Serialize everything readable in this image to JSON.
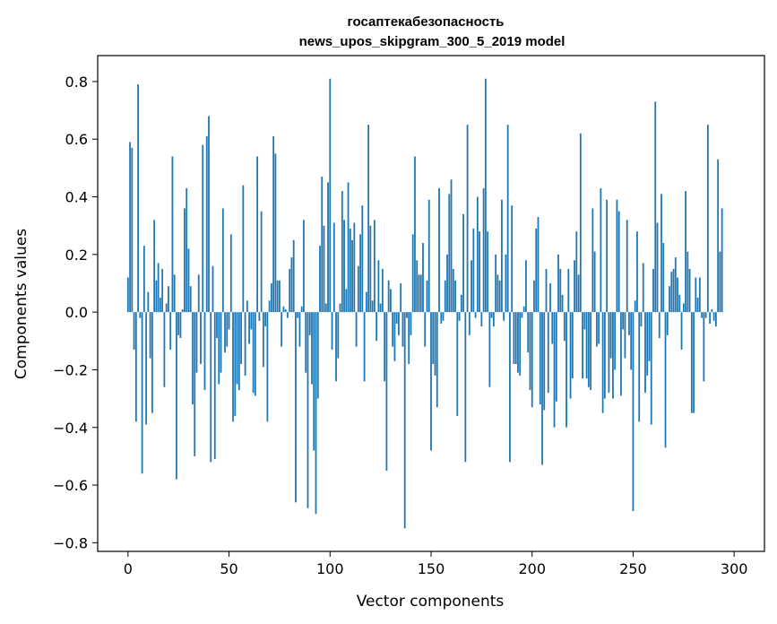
{
  "chart_data": {
    "type": "bar",
    "title": "госаптекабезопасность",
    "subtitle": "news_upos_skipgram_300_5_2019 model",
    "xlabel": "Vector components",
    "ylabel": "Components values",
    "xlim": [
      -15,
      315
    ],
    "ylim": [
      -0.83,
      0.89
    ],
    "xticks": [
      0,
      50,
      100,
      150,
      200,
      250,
      300
    ],
    "xtick_labels": [
      "0",
      "50",
      "100",
      "150",
      "200",
      "250",
      "300"
    ],
    "yticks": [
      -0.8,
      -0.6,
      -0.4,
      -0.2,
      0.0,
      0.2,
      0.4,
      0.6,
      0.8
    ],
    "ytick_labels": [
      "−0.8",
      "−0.6",
      "−0.4",
      "−0.2",
      "0.0",
      "0.2",
      "0.4",
      "0.6",
      "0.8"
    ],
    "bar_color": "#1f77b4",
    "grid": false,
    "values": [
      0.12,
      0.59,
      0.57,
      -0.13,
      -0.38,
      0.79,
      -0.02,
      -0.56,
      0.23,
      -0.39,
      0.07,
      -0.16,
      -0.35,
      0.32,
      0.11,
      0.17,
      0.05,
      0.15,
      -0.26,
      0.03,
      0.09,
      -0.13,
      0.54,
      0.13,
      -0.58,
      -0.08,
      -0.09,
      0.01,
      0.36,
      0.43,
      0.22,
      0.09,
      -0.32,
      -0.5,
      -0.21,
      0.13,
      -0.18,
      0.58,
      -0.27,
      0.61,
      0.68,
      -0.52,
      0.16,
      -0.51,
      -0.09,
      -0.25,
      -0.21,
      0.36,
      -0.14,
      -0.12,
      -0.06,
      0.27,
      -0.38,
      -0.36,
      -0.25,
      -0.27,
      -0.18,
      0.44,
      -0.22,
      0.04,
      -0.11,
      -0.06,
      -0.28,
      -0.29,
      0.54,
      -0.03,
      0.35,
      -0.19,
      -0.05,
      -0.38,
      0.04,
      0.1,
      0.61,
      0.55,
      0.11,
      0.11,
      -0.12,
      0.02,
      0.01,
      -0.02,
      0.15,
      0.19,
      0.25,
      -0.66,
      -0.02,
      -0.12,
      0.02,
      0.32,
      -0.21,
      -0.68,
      -0.08,
      -0.25,
      -0.48,
      -0.7,
      -0.3,
      0.23,
      0.47,
      0.3,
      0.03,
      0.45,
      0.81,
      -0.13,
      0.31,
      -0.24,
      -0.16,
      0.03,
      0.42,
      0.32,
      0.08,
      0.45,
      0.29,
      0.25,
      0.31,
      -0.12,
      0.16,
      0.27,
      0.37,
      -0.24,
      0.07,
      0.65,
      0.3,
      0.04,
      0.32,
      -0.1,
      0.18,
      0.03,
      0.15,
      -0.24,
      -0.55,
      0.11,
      0.08,
      -0.12,
      -0.17,
      -0.04,
      -0.08,
      0.1,
      -0.12,
      -0.75,
      -0.02,
      -0.18,
      -0.08,
      0.27,
      0.54,
      0.18,
      0.13,
      0.13,
      0.24,
      -0.12,
      0.11,
      0.39,
      -0.48,
      -0.18,
      -0.22,
      -0.33,
      0.43,
      -0.04,
      -0.03,
      0.11,
      0.2,
      0.41,
      0.46,
      0.15,
      0.11,
      -0.36,
      -0.03,
      0.06,
      0.34,
      -0.52,
      0.65,
      -0.08,
      0.18,
      0.29,
      -0.02,
      0.4,
      0.28,
      -0.05,
      0.43,
      0.81,
      0.28,
      -0.26,
      -0.02,
      -0.05,
      0.2,
      0.13,
      0.11,
      0.39,
      -0.03,
      0.2,
      0.65,
      -0.52,
      0.37,
      -0.18,
      -0.18,
      -0.21,
      -0.22,
      -0.02,
      0.02,
      0.18,
      -0.14,
      -0.27,
      -0.33,
      0.11,
      0.29,
      0.33,
      -0.32,
      -0.53,
      -0.34,
      0.15,
      -0.28,
      0.1,
      -0.11,
      -0.4,
      -0.31,
      0.2,
      0.15,
      0.06,
      -0.1,
      -0.4,
      0.15,
      -0.3,
      -0.23,
      0.18,
      0.28,
      0.13,
      0.62,
      -0.23,
      -0.06,
      -0.23,
      -0.26,
      -0.27,
      0.36,
      0.21,
      -0.12,
      -0.11,
      0.43,
      -0.35,
      -0.3,
      0.39,
      -0.28,
      -0.16,
      -0.3,
      -0.2,
      0.39,
      0.35,
      -0.29,
      -0.06,
      -0.16,
      0.32,
      -0.08,
      -0.2,
      -0.69,
      0.04,
      0.28,
      -0.38,
      -0.05,
      0.17,
      -0.28,
      -0.22,
      -0.17,
      -0.39,
      0.15,
      0.73,
      0.31,
      -0.09,
      0.41,
      0.24,
      -0.47,
      -0.08,
      0.09,
      0.14,
      0.15,
      0.19,
      0.12,
      0.06,
      -0.13,
      0.03,
      0.42,
      0.21,
      0.15,
      -0.35,
      -0.35,
      0.12,
      0.05,
      0.12,
      -0.02,
      -0.24,
      -0.02,
      0.65,
      -0.04,
      0.01,
      -0.03,
      -0.05,
      0.53,
      0.21,
      0.36
    ]
  }
}
